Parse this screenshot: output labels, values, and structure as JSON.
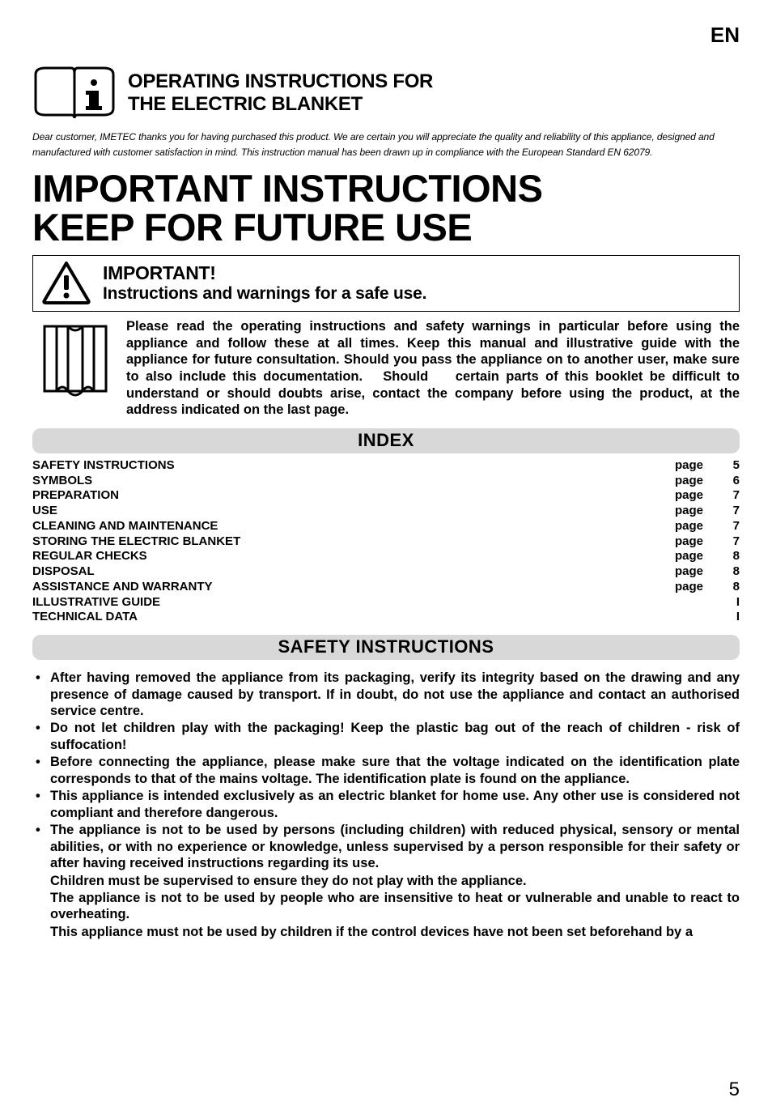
{
  "language_code": "EN",
  "header": {
    "title_line1": "OPERATING INSTRUCTIONS FOR",
    "title_line2": "THE ELECTRIC BLANKET"
  },
  "dear_customer": "Dear customer, IMETEC thanks you for having purchased this product. We are certain you will appreciate the quality and reliability of this appliance, designed and manufactured with customer satisfaction in mind. This instruction manual has been drawn up in compliance with the European Standard EN 62079.",
  "big_heading_line1": "IMPORTANT INSTRUCTIONS",
  "big_heading_line2": "KEEP FOR FUTURE USE",
  "important_box": {
    "title": "IMPORTANT!",
    "subtitle": "Instructions and warnings for a safe use."
  },
  "read_paragraph": "Please read the operating instructions and safety warnings in particular before using the appliance and follow these at all times. Keep this manual and illustrative guide with the appliance for future consultation. Should you pass the appliance on to another user, make sure to also include this documentation.   Should    certain parts of this booklet be difficult to understand or should doubts arise, contact the company before using the product, at the address indicated on the last page.",
  "index_heading": "INDEX",
  "index": {
    "page_word": "page",
    "items": [
      {
        "label": "SAFETY INSTRUCTIONS",
        "page": "5"
      },
      {
        "label": "SYMBOLS",
        "page": "6"
      },
      {
        "label": "PREPARATION",
        "page": "7"
      },
      {
        "label": "USE",
        "page": "7"
      },
      {
        "label": "CLEANING AND MAINTENANCE",
        "page": "7"
      },
      {
        "label": "STORING THE ELECTRIC BLANKET",
        "page": "7"
      },
      {
        "label": "REGULAR CHECKS",
        "page": "8"
      },
      {
        "label": "DISPOSAL",
        "page": "8"
      },
      {
        "label": "ASSISTANCE AND WARRANTY",
        "page": "8"
      },
      {
        "label": "ILLUSTRATIVE GUIDE",
        "page": "I"
      },
      {
        "label": "TECHNICAL DATA",
        "page": "I"
      }
    ]
  },
  "safety_heading": "SAFETY INSTRUCTIONS",
  "safety_bullets": [
    "After having removed the appliance from its packaging, verify its integrity based on the drawing and any presence of damage caused by transport. If in doubt, do not use the appliance and contact an authorised service centre.",
    "Do not let children play with the packaging! Keep the plastic bag out of the reach of children - risk of suffocation!",
    "Before connecting the appliance, please make sure that the voltage indicated on the identification plate corresponds to that of the mains voltage. The identification plate is found on the appliance.",
    "This appliance is intended exclusively as an electric blanket for home use. Any other use is considered not compliant and therefore dangerous.",
    "The appliance is not to be used by persons (including children) with reduced physical, sensory or mental abilities, or with no experience or knowledge, unless supervised by a person responsible for their safety or after having received instructions regarding its use."
  ],
  "safety_continued": [
    "Children must be supervised to ensure they do not play with the appliance.",
    "The appliance is not to be used by people who are insensitive to heat or vulnerable and unable to react to overheating.",
    "This appliance must not be used by children if the control devices have not been set beforehand by a"
  ],
  "page_number": "5",
  "colors": {
    "background": "#ffffff",
    "text": "#000000",
    "section_bar_bg": "#d8d8d8"
  }
}
